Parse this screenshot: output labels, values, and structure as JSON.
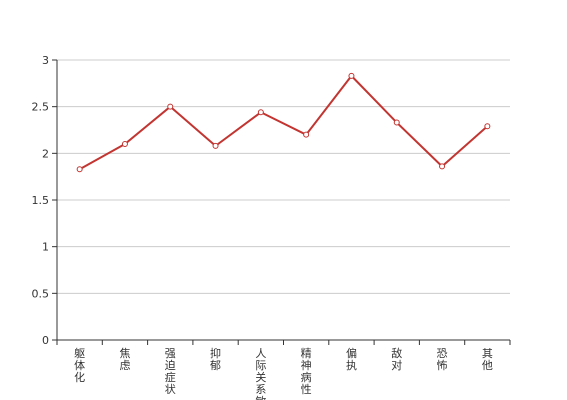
{
  "chart_data": {
    "type": "line",
    "categories": [
      "躯体化",
      "焦虑",
      "强迫症状",
      "抑郁",
      "人际关系敏感",
      "精神病性",
      "偏执",
      "敌对",
      "恐怖",
      "其他"
    ],
    "series": [
      {
        "values": [
          1.83,
          2.1,
          2.5,
          2.08,
          2.44,
          2.2,
          2.83,
          2.33,
          1.86,
          2.29
        ]
      }
    ],
    "ylim": [
      0,
      3
    ],
    "yticks": [
      "0",
      "0.5",
      "1",
      "1.5",
      "2",
      "2.5",
      "3"
    ],
    "grid": true,
    "colors": {
      "line": "#c23531",
      "grid": "#cccccc",
      "axis": "#333333"
    }
  }
}
